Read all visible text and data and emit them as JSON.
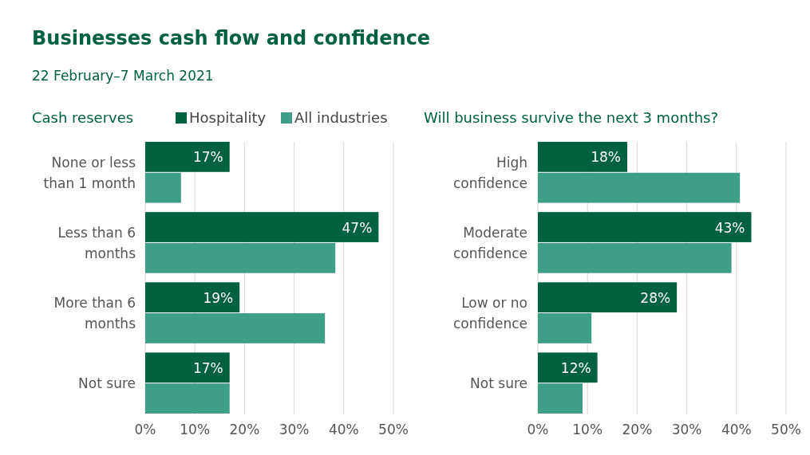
{
  "chart_data": [
    {
      "type": "bar",
      "orientation": "horizontal",
      "title": "Businesses cash flow and confidence",
      "subtitle": "22 February–7 March 2021",
      "ylabel": "Cash reserves",
      "categories": [
        "None or less than 1 month",
        "Less than 6 months",
        "More than 6 months",
        "Not sure"
      ],
      "series": [
        {
          "name": "Hospitality",
          "color": "#00613f",
          "values": [
            17,
            47,
            19,
            17
          ],
          "value_labels": [
            "17%",
            "47%",
            "19%",
            "17%"
          ]
        },
        {
          "name": "All industries",
          "color": "#3f9e86",
          "values": [
            7.2,
            38.3,
            36.2,
            17
          ]
        }
      ],
      "xlim": [
        0,
        50
      ],
      "xticks": [
        {
          "value": 0,
          "label": "0%"
        },
        {
          "value": 10,
          "label": "10%"
        },
        {
          "value": 20,
          "label": "20%"
        },
        {
          "value": 30,
          "label": "30%"
        },
        {
          "value": 40,
          "label": "40%"
        },
        {
          "value": 50,
          "label": "50%"
        }
      ],
      "grid": "x",
      "legend": "top"
    },
    {
      "type": "bar",
      "orientation": "horizontal",
      "ylabel": "Will business survive the next 3 months?",
      "categories": [
        "High confidence",
        "Moderate confidence",
        "Low or no confidence",
        "Not sure"
      ],
      "series": [
        {
          "color": "#00613f",
          "values": [
            18,
            43,
            28,
            12
          ],
          "value_labels": [
            "18%",
            "43%",
            "28%",
            "12%"
          ]
        },
        {
          "color": "#3f9e86",
          "values": [
            40.7,
            39,
            10.8,
            9
          ]
        }
      ],
      "xlim": [
        0,
        50
      ],
      "xticks": [
        {
          "value": 0,
          "label": "0%"
        },
        {
          "value": 10,
          "label": "10%"
        },
        {
          "value": 20,
          "label": "20%"
        },
        {
          "value": 30,
          "label": "30%"
        },
        {
          "value": 40,
          "label": "40%"
        },
        {
          "value": 50,
          "label": "50%"
        }
      ],
      "grid": "x"
    }
  ]
}
